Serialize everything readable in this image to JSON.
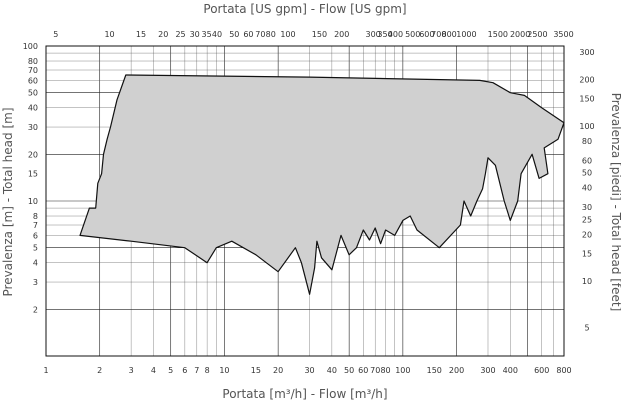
{
  "chart_data": {
    "type": "area",
    "title": "",
    "xlabel_bottom": "Portata [m³/h] - Flow [m³/h]",
    "xlabel_top": "Portata [US gpm] - Flow [US gpm]",
    "ylabel_left": "Prevalenza [m] - Total head [m]",
    "ylabel_right": "Prevalenza [piedi] - Total head [feet]",
    "xscale": "log",
    "yscale": "log",
    "xlim": [
      1,
      800
    ],
    "ylim": [
      1,
      100
    ],
    "grid": true,
    "x_ticks": [
      "1",
      "2",
      "3",
      "4",
      "5",
      "6",
      "7",
      "8",
      "10",
      "15",
      "20",
      "30",
      "40",
      "50",
      "60",
      "70",
      "80",
      "100",
      "150",
      "200",
      "300",
      "400",
      "600",
      "800"
    ],
    "y_ticks": [
      "2",
      "3",
      "4",
      "5",
      "6",
      "7",
      "8",
      "10",
      "15",
      "20",
      "30",
      "40",
      "50",
      "60",
      "70",
      "80",
      "100"
    ],
    "top_ticks": [
      "5",
      "10",
      "15",
      "20",
      "25",
      "30",
      "35",
      "40",
      "50",
      "60",
      "70",
      "80",
      "100",
      "150",
      "200",
      "300",
      "350",
      "400",
      "500",
      "600",
      "700",
      "800",
      "1000",
      "1500",
      "2000",
      "2500",
      "3500"
    ],
    "right_ticks": [
      "5",
      "10",
      "15",
      "20",
      "25",
      "30",
      "40",
      "50",
      "60",
      "80",
      "100",
      "150",
      "200",
      "300"
    ],
    "fill_color": "#d0d0d0",
    "outline_color": "#111111",
    "series": [
      {
        "points": [
          [
            1.55,
            6.0
          ],
          [
            1.75,
            9.0
          ],
          [
            1.9,
            9.0
          ],
          [
            1.95,
            13.0
          ],
          [
            2.05,
            15.0
          ],
          [
            2.1,
            20.0
          ],
          [
            2.2,
            25.0
          ],
          [
            2.3,
            30.0
          ],
          [
            2.5,
            45.0
          ],
          [
            2.8,
            65.0
          ],
          [
            30,
            63.0
          ],
          [
            270,
            60.0
          ],
          [
            320,
            58.0
          ],
          [
            400,
            50.0
          ],
          [
            480,
            48.0
          ],
          [
            600,
            40.0
          ],
          [
            800,
            32.0
          ],
          [
            740,
            25.0
          ],
          [
            620,
            22.0
          ],
          [
            650,
            15.0
          ],
          [
            580,
            14.0
          ],
          [
            530,
            20.0
          ],
          [
            460,
            15.0
          ],
          [
            440,
            10.0
          ],
          [
            400,
            7.5
          ],
          [
            370,
            10.0
          ],
          [
            330,
            17.0
          ],
          [
            300,
            19.0
          ],
          [
            290,
            15.0
          ],
          [
            280,
            12.0
          ],
          [
            260,
            10.0
          ],
          [
            240,
            8.0
          ],
          [
            220,
            10.0
          ],
          [
            210,
            7.0
          ],
          [
            160,
            5.0
          ],
          [
            120,
            6.5
          ],
          [
            110,
            8.0
          ],
          [
            100,
            7.5
          ],
          [
            90,
            6.0
          ],
          [
            80,
            6.5
          ],
          [
            75,
            5.3
          ],
          [
            70,
            6.7
          ],
          [
            65,
            5.6
          ],
          [
            60,
            6.5
          ],
          [
            55,
            5.0
          ],
          [
            50,
            4.5
          ],
          [
            45,
            6.0
          ],
          [
            40,
            3.6
          ],
          [
            35,
            4.3
          ],
          [
            33,
            5.5
          ],
          [
            32,
            3.7
          ],
          [
            30,
            2.5
          ],
          [
            27,
            4.0
          ],
          [
            25,
            5.0
          ],
          [
            20,
            3.5
          ],
          [
            15,
            4.5
          ],
          [
            11,
            5.5
          ],
          [
            9,
            5.0
          ],
          [
            8,
            4.0
          ],
          [
            6,
            5.0
          ],
          [
            3,
            5.5
          ],
          [
            1.55,
            6.0
          ]
        ]
      }
    ]
  }
}
